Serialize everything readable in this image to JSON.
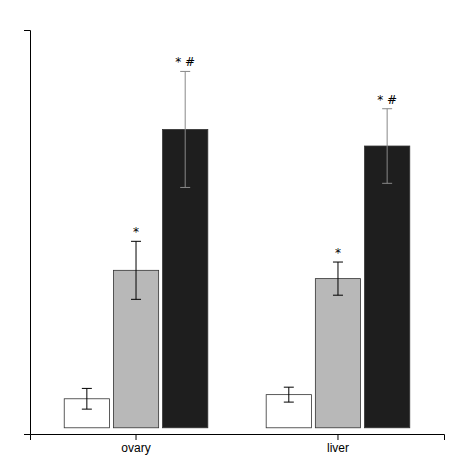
{
  "chart_data": {
    "type": "bar",
    "categories": [
      "ovary",
      "liver"
    ],
    "series": [
      {
        "color": "white",
        "values": [
          0.07,
          0.08
        ],
        "errors": [
          0.025,
          0.018
        ],
        "annotations": [
          null,
          null
        ]
      },
      {
        "color": "#b8b8b8",
        "values": [
          0.38,
          0.36
        ],
        "errors": [
          0.07,
          0.04
        ],
        "annotations": [
          "*",
          "*"
        ]
      },
      {
        "color": "#1e1e1e",
        "values": [
          0.72,
          0.68
        ],
        "errors": [
          0.14,
          0.09
        ],
        "annotations": [
          "* #",
          "* #"
        ]
      }
    ],
    "ylim": [
      -0.015,
      0.96
    ],
    "yticks": [],
    "grid": false,
    "tick_labels": "x"
  }
}
